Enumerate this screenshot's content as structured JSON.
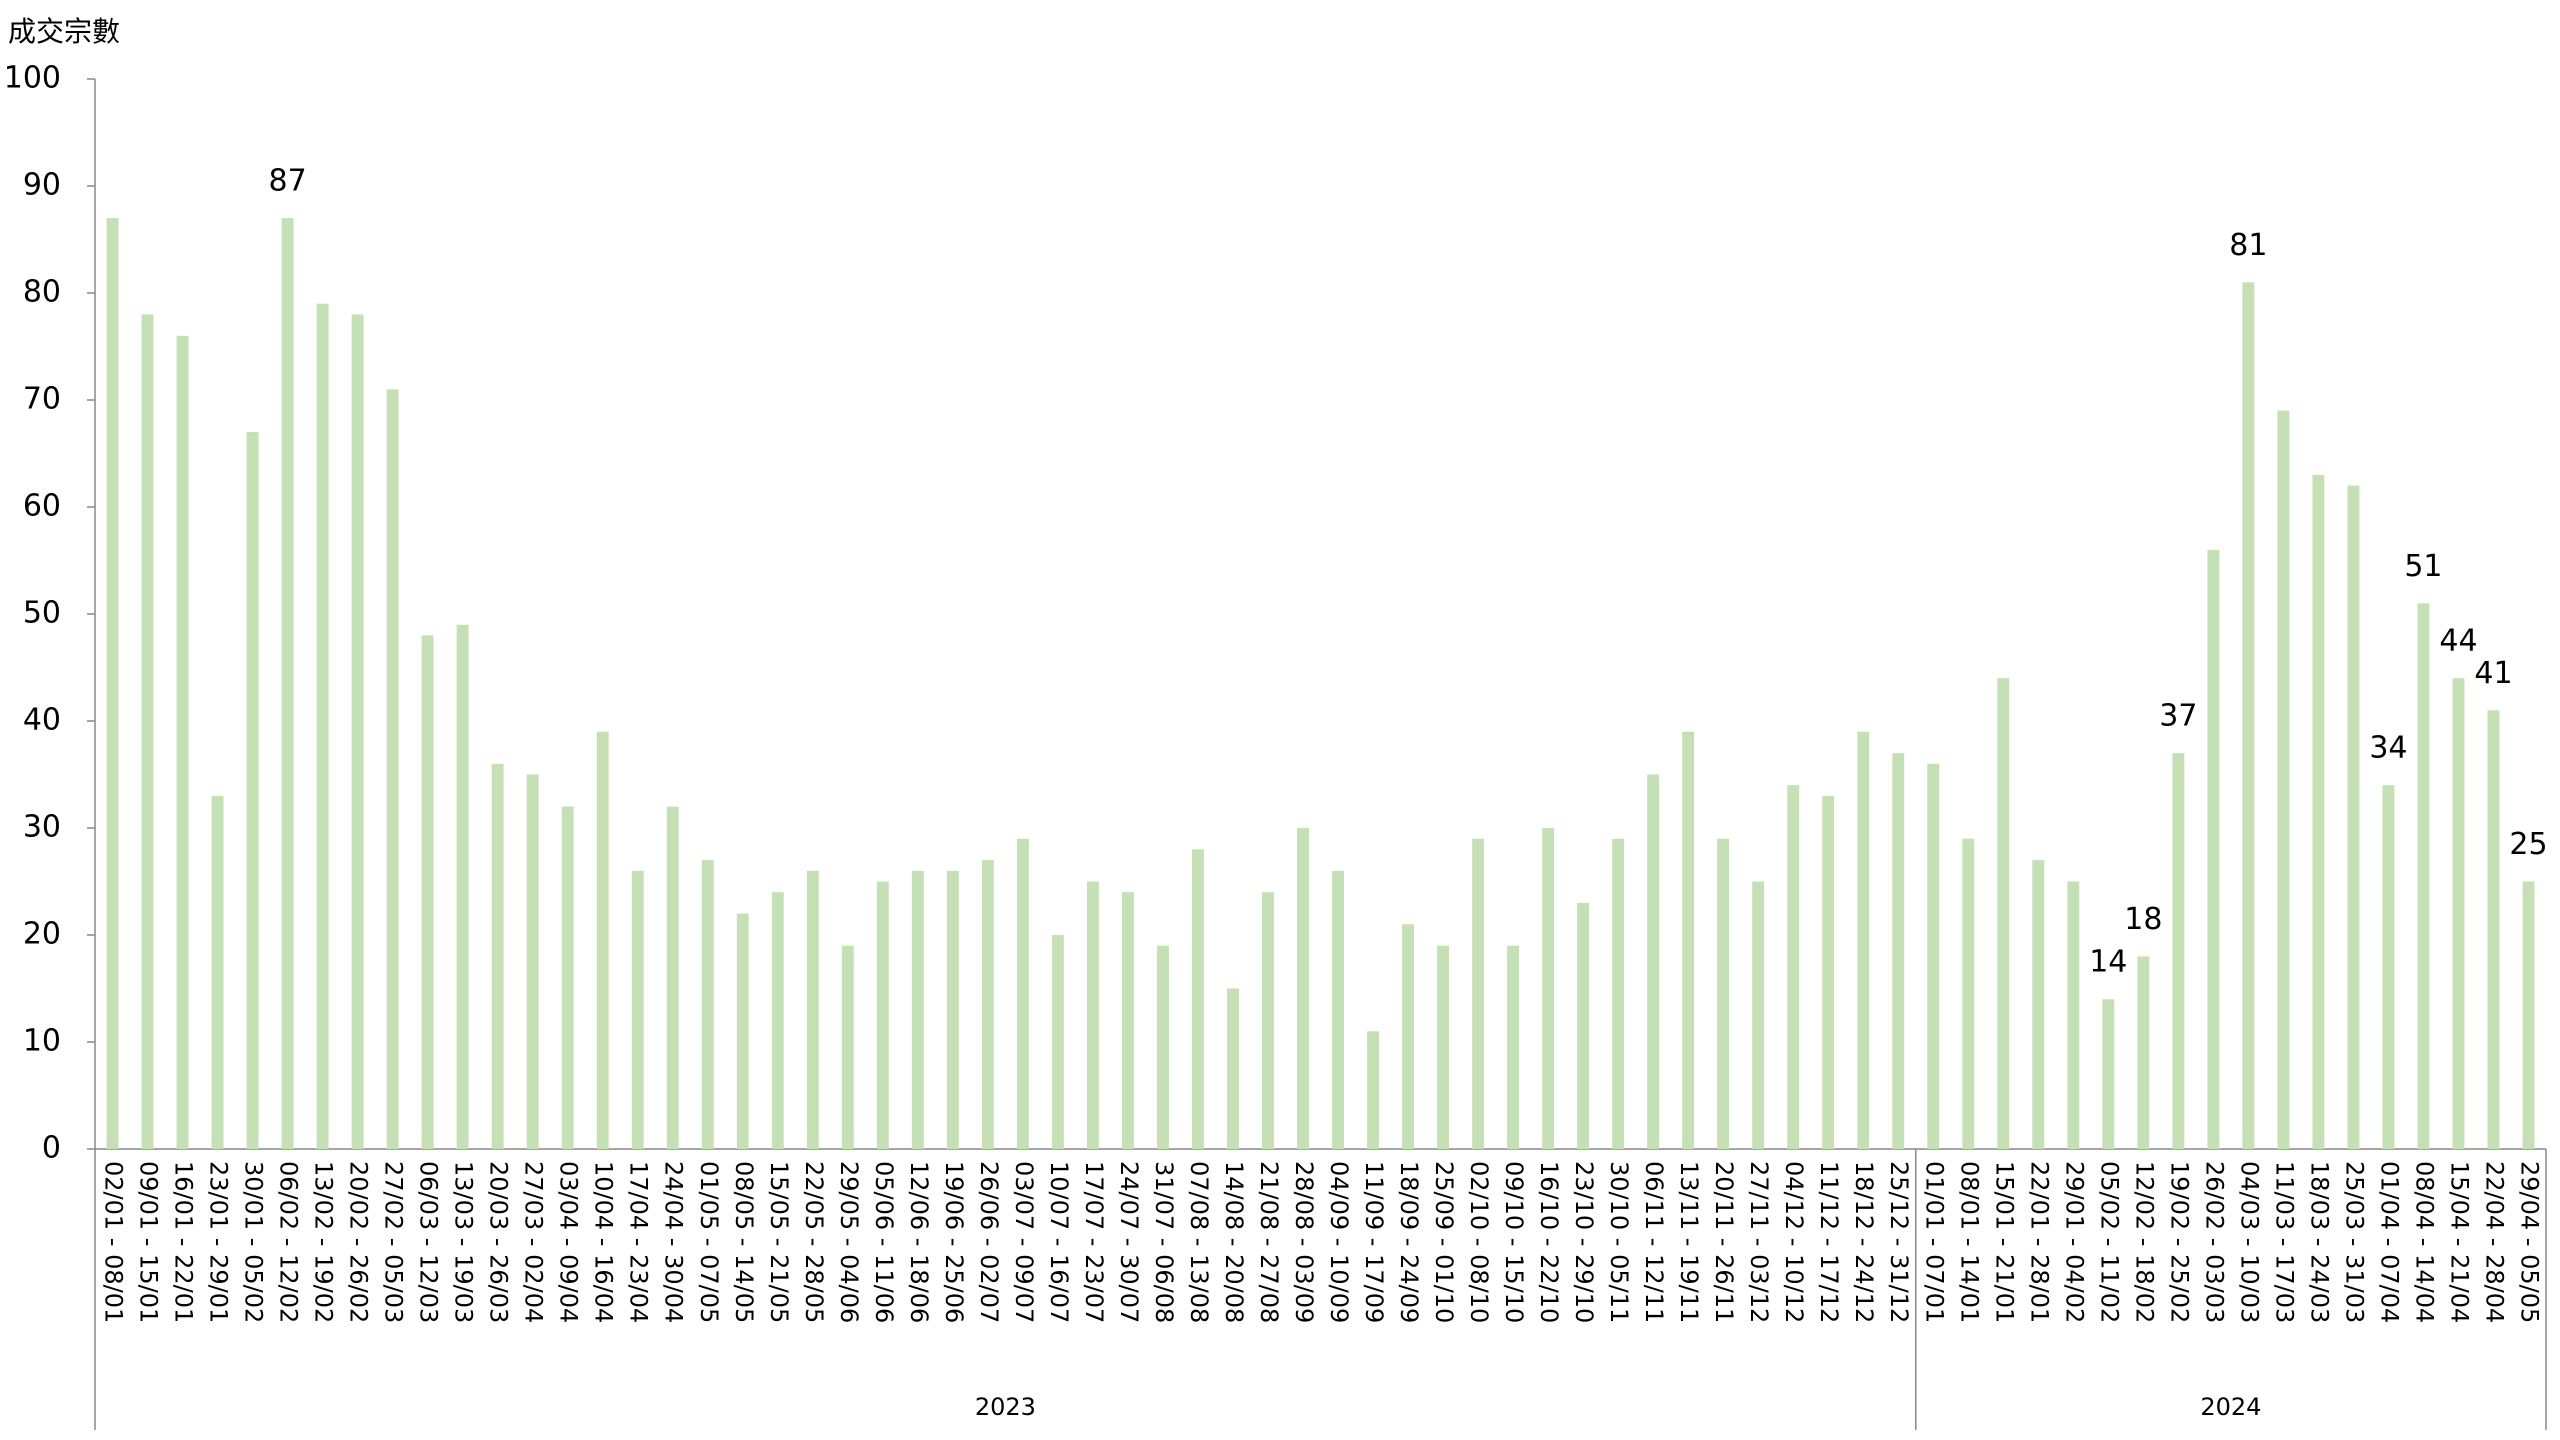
{
  "chart_data": {
    "type": "bar",
    "y_label": "成交宗數",
    "color": "#c5e0b4",
    "ylim": [
      0,
      100
    ],
    "yticks": [
      0,
      10,
      20,
      30,
      40,
      50,
      60,
      70,
      80,
      90,
      100
    ],
    "grid": false,
    "groups": [
      {
        "name": "2023",
        "categories": [
          "02/01 - 08/01",
          "09/01 - 15/01",
          "16/01 - 22/01",
          "23/01 - 29/01",
          "30/01 - 05/02",
          "06/02 - 12/02",
          "13/02 - 19/02",
          "20/02 - 26/02",
          "27/02 - 05/03",
          "06/03 - 12/03",
          "13/03 - 19/03",
          "20/03 - 26/03",
          "27/03 - 02/04",
          "03/04 - 09/04",
          "10/04 - 16/04",
          "17/04 - 23/04",
          "24/04 - 30/04",
          "01/05 - 07/05",
          "08/05 - 14/05",
          "15/05 - 21/05",
          "22/05 - 28/05",
          "29/05 - 04/06",
          "05/06 - 11/06",
          "12/06 - 18/06",
          "19/06 - 25/06",
          "26/06 - 02/07",
          "03/07 - 09/07",
          "10/07 - 16/07",
          "17/07 - 23/07",
          "24/07 - 30/07",
          "31/07 - 06/08",
          "07/08 - 13/08",
          "14/08 - 20/08",
          "21/08 - 27/08",
          "28/08 - 03/09",
          "04/09 - 10/09",
          "11/09 - 17/09",
          "18/09 - 24/09",
          "25/09 - 01/10",
          "02/10 - 08/10",
          "09/10 - 15/10",
          "16/10 - 22/10",
          "23/10 - 29/10",
          "30/10 - 05/11",
          "06/11 - 12/11",
          "13/11 - 19/11",
          "20/11 - 26/11",
          "27/11 - 03/12",
          "04/12 - 10/12",
          "11/12 - 17/12",
          "18/12 - 24/12",
          "25/12 - 31/12"
        ],
        "values": [
          87,
          78,
          76,
          33,
          67,
          87,
          79,
          78,
          71,
          48,
          49,
          36,
          35,
          32,
          39,
          26,
          32,
          27,
          22,
          24,
          26,
          19,
          25,
          26,
          26,
          27,
          29,
          20,
          25,
          24,
          19,
          28,
          15,
          24,
          30,
          26,
          11,
          21,
          19,
          29,
          19,
          30,
          23,
          29,
          35,
          39,
          29,
          25,
          34,
          33,
          39,
          37
        ],
        "value_label_shown": [
          false,
          false,
          false,
          false,
          false,
          true,
          false,
          false,
          false,
          false,
          false,
          false,
          false,
          false,
          false,
          false,
          false,
          false,
          false,
          false,
          false,
          false,
          false,
          false,
          false,
          false,
          false,
          false,
          false,
          false,
          false,
          false,
          false,
          false,
          false,
          false,
          false,
          false,
          false,
          false,
          false,
          false,
          false,
          false,
          false,
          false,
          false,
          false,
          false,
          false,
          false,
          false
        ]
      },
      {
        "name": "2024",
        "categories": [
          "01/01 - 07/01",
          "08/01 - 14/01",
          "15/01 - 21/01",
          "22/01 - 28/01",
          "29/01 - 04/02",
          "05/02 - 11/02",
          "12/02 - 18/02",
          "19/02 - 25/02",
          "26/02 - 03/03",
          "04/03 - 10/03",
          "11/03 - 17/03",
          "18/03 - 24/03",
          "25/03 - 31/03",
          "01/04 - 07/04",
          "08/04 - 14/04",
          "15/04 - 21/04",
          "22/04 - 28/04",
          "29/04 - 05/05"
        ],
        "values": [
          36,
          29,
          44,
          27,
          25,
          14,
          18,
          37,
          56,
          81,
          69,
          63,
          62,
          34,
          51,
          44,
          41,
          25
        ],
        "value_label_shown": [
          false,
          false,
          false,
          false,
          false,
          true,
          true,
          true,
          false,
          true,
          false,
          false,
          false,
          true,
          true,
          true,
          true,
          true
        ]
      }
    ]
  }
}
